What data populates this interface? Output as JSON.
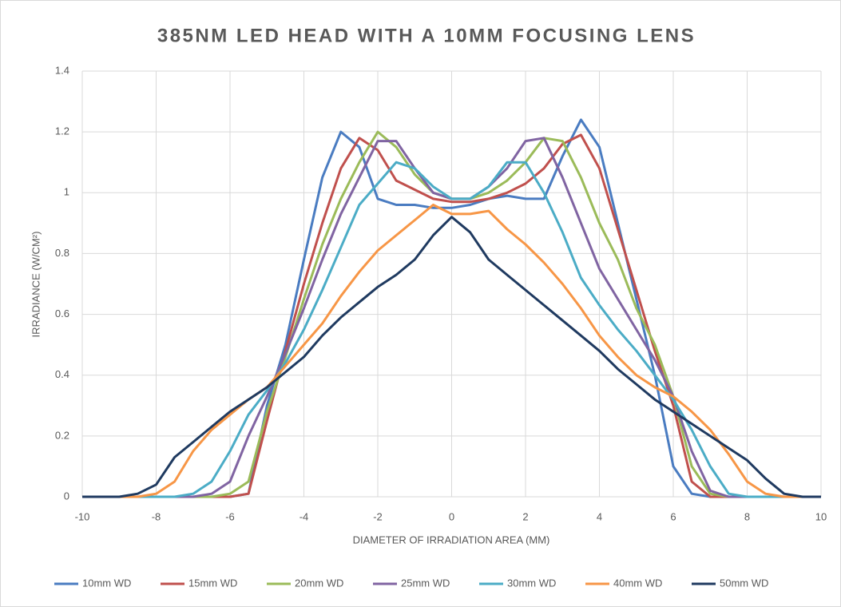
{
  "chart_data": {
    "type": "line",
    "title": "385NM LED HEAD WITH A 10MM FOCUSING LENS",
    "x_label": "DIAMETER OF IRRADIATION AREA (MM)",
    "y_label": "IRRADIANCE (W/CM²)",
    "x": [
      -10,
      -9.5,
      -9,
      -8.5,
      -8,
      -7.5,
      -7,
      -6.5,
      -6,
      -5.5,
      -5,
      -4.5,
      -4,
      -3.5,
      -3,
      -2.5,
      -2,
      -1.5,
      -1,
      -0.5,
      0,
      0.5,
      1,
      1.5,
      2,
      2.5,
      3,
      3.5,
      4,
      4.5,
      5,
      5.5,
      6,
      6.5,
      7,
      7.5,
      8,
      8.5,
      9,
      9.5,
      10
    ],
    "series": [
      {
        "name": "10mm WD",
        "color": "#4a7cc1",
        "values": [
          0,
          0,
          0,
          0,
          0,
          0,
          0,
          0,
          0,
          0.01,
          0.3,
          0.5,
          0.78,
          1.05,
          1.2,
          1.15,
          0.98,
          0.96,
          0.96,
          0.95,
          0.95,
          0.96,
          0.98,
          0.99,
          0.98,
          0.98,
          1.12,
          1.24,
          1.15,
          0.9,
          0.65,
          0.4,
          0.1,
          0.01,
          0,
          0,
          0,
          0,
          0,
          0,
          0
        ]
      },
      {
        "name": "15mm WD",
        "color": "#c0504d",
        "values": [
          0,
          0,
          0,
          0,
          0,
          0,
          0,
          0,
          0,
          0.01,
          0.25,
          0.48,
          0.7,
          0.9,
          1.08,
          1.18,
          1.14,
          1.04,
          1.01,
          0.98,
          0.97,
          0.97,
          0.98,
          1.0,
          1.03,
          1.08,
          1.16,
          1.19,
          1.08,
          0.88,
          0.68,
          0.48,
          0.3,
          0.05,
          0,
          0,
          0,
          0,
          0,
          0,
          0
        ]
      },
      {
        "name": "20mm WD",
        "color": "#9bbb59",
        "values": [
          0,
          0,
          0,
          0,
          0,
          0,
          0,
          0,
          0.01,
          0.05,
          0.28,
          0.46,
          0.65,
          0.83,
          0.98,
          1.1,
          1.2,
          1.15,
          1.06,
          1.0,
          0.98,
          0.98,
          1.0,
          1.04,
          1.1,
          1.18,
          1.17,
          1.05,
          0.9,
          0.78,
          0.62,
          0.5,
          0.33,
          0.1,
          0.01,
          0,
          0,
          0,
          0,
          0,
          0
        ]
      },
      {
        "name": "25mm WD",
        "color": "#8064a2",
        "values": [
          0,
          0,
          0,
          0,
          0,
          0,
          0,
          0.01,
          0.05,
          0.2,
          0.33,
          0.47,
          0.62,
          0.78,
          0.93,
          1.05,
          1.17,
          1.17,
          1.08,
          1.0,
          0.98,
          0.98,
          1.02,
          1.08,
          1.17,
          1.18,
          1.05,
          0.9,
          0.75,
          0.65,
          0.55,
          0.45,
          0.33,
          0.15,
          0.02,
          0,
          0,
          0,
          0,
          0,
          0
        ]
      },
      {
        "name": "30mm WD",
        "color": "#4bacc6",
        "values": [
          0,
          0,
          0,
          0,
          0,
          0,
          0.01,
          0.05,
          0.15,
          0.27,
          0.35,
          0.44,
          0.55,
          0.68,
          0.82,
          0.96,
          1.03,
          1.1,
          1.08,
          1.02,
          0.98,
          0.98,
          1.02,
          1.1,
          1.1,
          1.0,
          0.87,
          0.72,
          0.63,
          0.55,
          0.48,
          0.4,
          0.32,
          0.22,
          0.1,
          0.01,
          0,
          0,
          0,
          0,
          0
        ]
      },
      {
        "name": "40mm WD",
        "color": "#f79646",
        "values": [
          0,
          0,
          0,
          0,
          0.01,
          0.05,
          0.15,
          0.22,
          0.27,
          0.32,
          0.36,
          0.43,
          0.5,
          0.57,
          0.66,
          0.74,
          0.81,
          0.86,
          0.91,
          0.96,
          0.93,
          0.93,
          0.94,
          0.88,
          0.83,
          0.77,
          0.7,
          0.62,
          0.53,
          0.46,
          0.4,
          0.36,
          0.33,
          0.28,
          0.22,
          0.14,
          0.05,
          0.01,
          0,
          0,
          0
        ]
      },
      {
        "name": "50mm WD",
        "color": "#1f3a60",
        "values": [
          0,
          0,
          0,
          0.01,
          0.04,
          0.13,
          0.18,
          0.23,
          0.28,
          0.32,
          0.36,
          0.41,
          0.46,
          0.53,
          0.59,
          0.64,
          0.69,
          0.73,
          0.78,
          0.86,
          0.92,
          0.87,
          0.78,
          0.73,
          0.68,
          0.63,
          0.58,
          0.53,
          0.48,
          0.42,
          0.37,
          0.32,
          0.28,
          0.24,
          0.2,
          0.16,
          0.12,
          0.06,
          0.01,
          0,
          0
        ]
      }
    ],
    "xlim": [
      -10,
      10
    ],
    "xticks": [
      -10,
      -8,
      -6,
      -4,
      -2,
      0,
      2,
      4,
      6,
      8,
      10
    ],
    "ylim": [
      0,
      1.4
    ],
    "yticks": [
      0,
      0.2,
      0.4,
      0.6,
      0.8,
      1,
      1.2,
      1.4
    ],
    "grid": true,
    "legend": "bottom"
  }
}
